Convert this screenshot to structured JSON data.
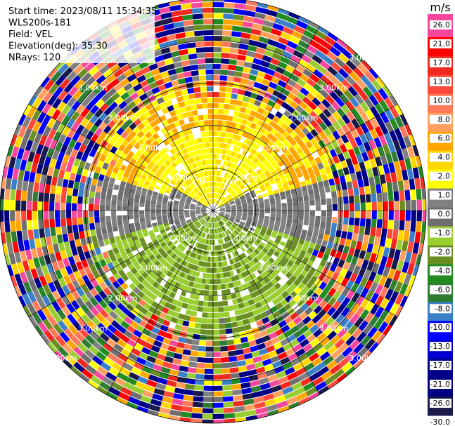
{
  "info": [
    "Start time: 2023/08/11 15:34:35",
    "WLS200s-181",
    "Field: VEL",
    "Elevation(deg): 35.30",
    "NRays: 120"
  ],
  "range_rings": [
    "1.00km",
    "2.00km",
    "2.00km",
    "3.00km",
    "3.00km"
  ],
  "colorbar": {
    "unit": "m/s",
    "ticks": [
      "26.0",
      "21.0",
      "17.0",
      "13.0",
      "10.0",
      "8.0",
      "6.0",
      "4.0",
      "2.0",
      "1.0",
      "0.0",
      "-1.0",
      "-2.0",
      "-4.0",
      "-6.0",
      "-8.0",
      "-10.0",
      "-13.0",
      "-17.0",
      "-21.0",
      "-26.0",
      "-30.0"
    ],
    "colors": [
      "#f5489c",
      "#ff0000",
      "#f0281e",
      "#ff4a3a",
      "#ff7a5a",
      "#ffa060",
      "#ffa500",
      "#ffd700",
      "#ffff00",
      "#808080",
      "#6e6e6e",
      "#9acd32",
      "#6b8e23",
      "#228b22",
      "#2e7d32",
      "#3a80c8",
      "#0000ff",
      "#0000cd",
      "#00008b",
      "#000080",
      "#1a1a4a"
    ]
  }
}
